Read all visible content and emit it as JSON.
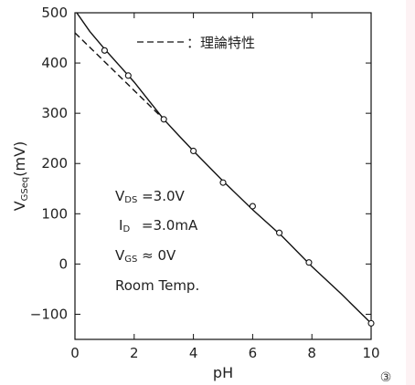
{
  "chart_data": {
    "type": "scatter",
    "x_label": "pH",
    "y_label_main": "V",
    "y_label_sub": "GSeq",
    "y_label_unit": "(mV)",
    "xlim": [
      0,
      10
    ],
    "ylim": [
      -150,
      500
    ],
    "x_ticks": [
      0,
      2,
      4,
      6,
      8,
      10
    ],
    "y_ticks": [
      -100,
      0,
      100,
      200,
      300,
      400,
      500
    ],
    "y_tick_labels": [
      "−100",
      "0",
      "100",
      "200",
      "300",
      "400",
      "500"
    ],
    "grid": false,
    "legend": {
      "placement": "top-right",
      "dash_label": "：理論特性"
    },
    "series": [
      {
        "style": "markers",
        "x": [
          1,
          1.8,
          3,
          4,
          5,
          6,
          6.9,
          7.9,
          10
        ],
        "y": [
          425,
          375,
          288,
          225,
          162,
          115,
          62,
          3,
          -118
        ]
      },
      {
        "style": "solid-line",
        "x": [
          0,
          0.5,
          1,
          1.5,
          2,
          2.5,
          3,
          3.5,
          4,
          5,
          6,
          7,
          8,
          9,
          10
        ],
        "y": [
          505,
          463,
          428,
          395,
          362,
          325,
          288,
          256,
          225,
          165,
          108,
          55,
          -5,
          -60,
          -118
        ]
      },
      {
        "style": "dashed-line",
        "x": [
          0,
          3
        ],
        "y": [
          460,
          288
        ]
      }
    ],
    "annotations": [
      {
        "main": "V",
        "sub": "DS",
        "rest": " =3.0V"
      },
      {
        "main": "I",
        "sub": "D",
        "rest": " =3.0mA"
      },
      {
        "main": "V",
        "sub": "GS",
        "rest": " ≈ 0V"
      },
      {
        "main": "Room Temp.",
        "sub": "",
        "rest": ""
      }
    ],
    "figure_number": "③",
    "colors": {
      "line": "#111111",
      "marker_fill": "#ffffff",
      "edge_strip": "#fdf2f4"
    }
  }
}
